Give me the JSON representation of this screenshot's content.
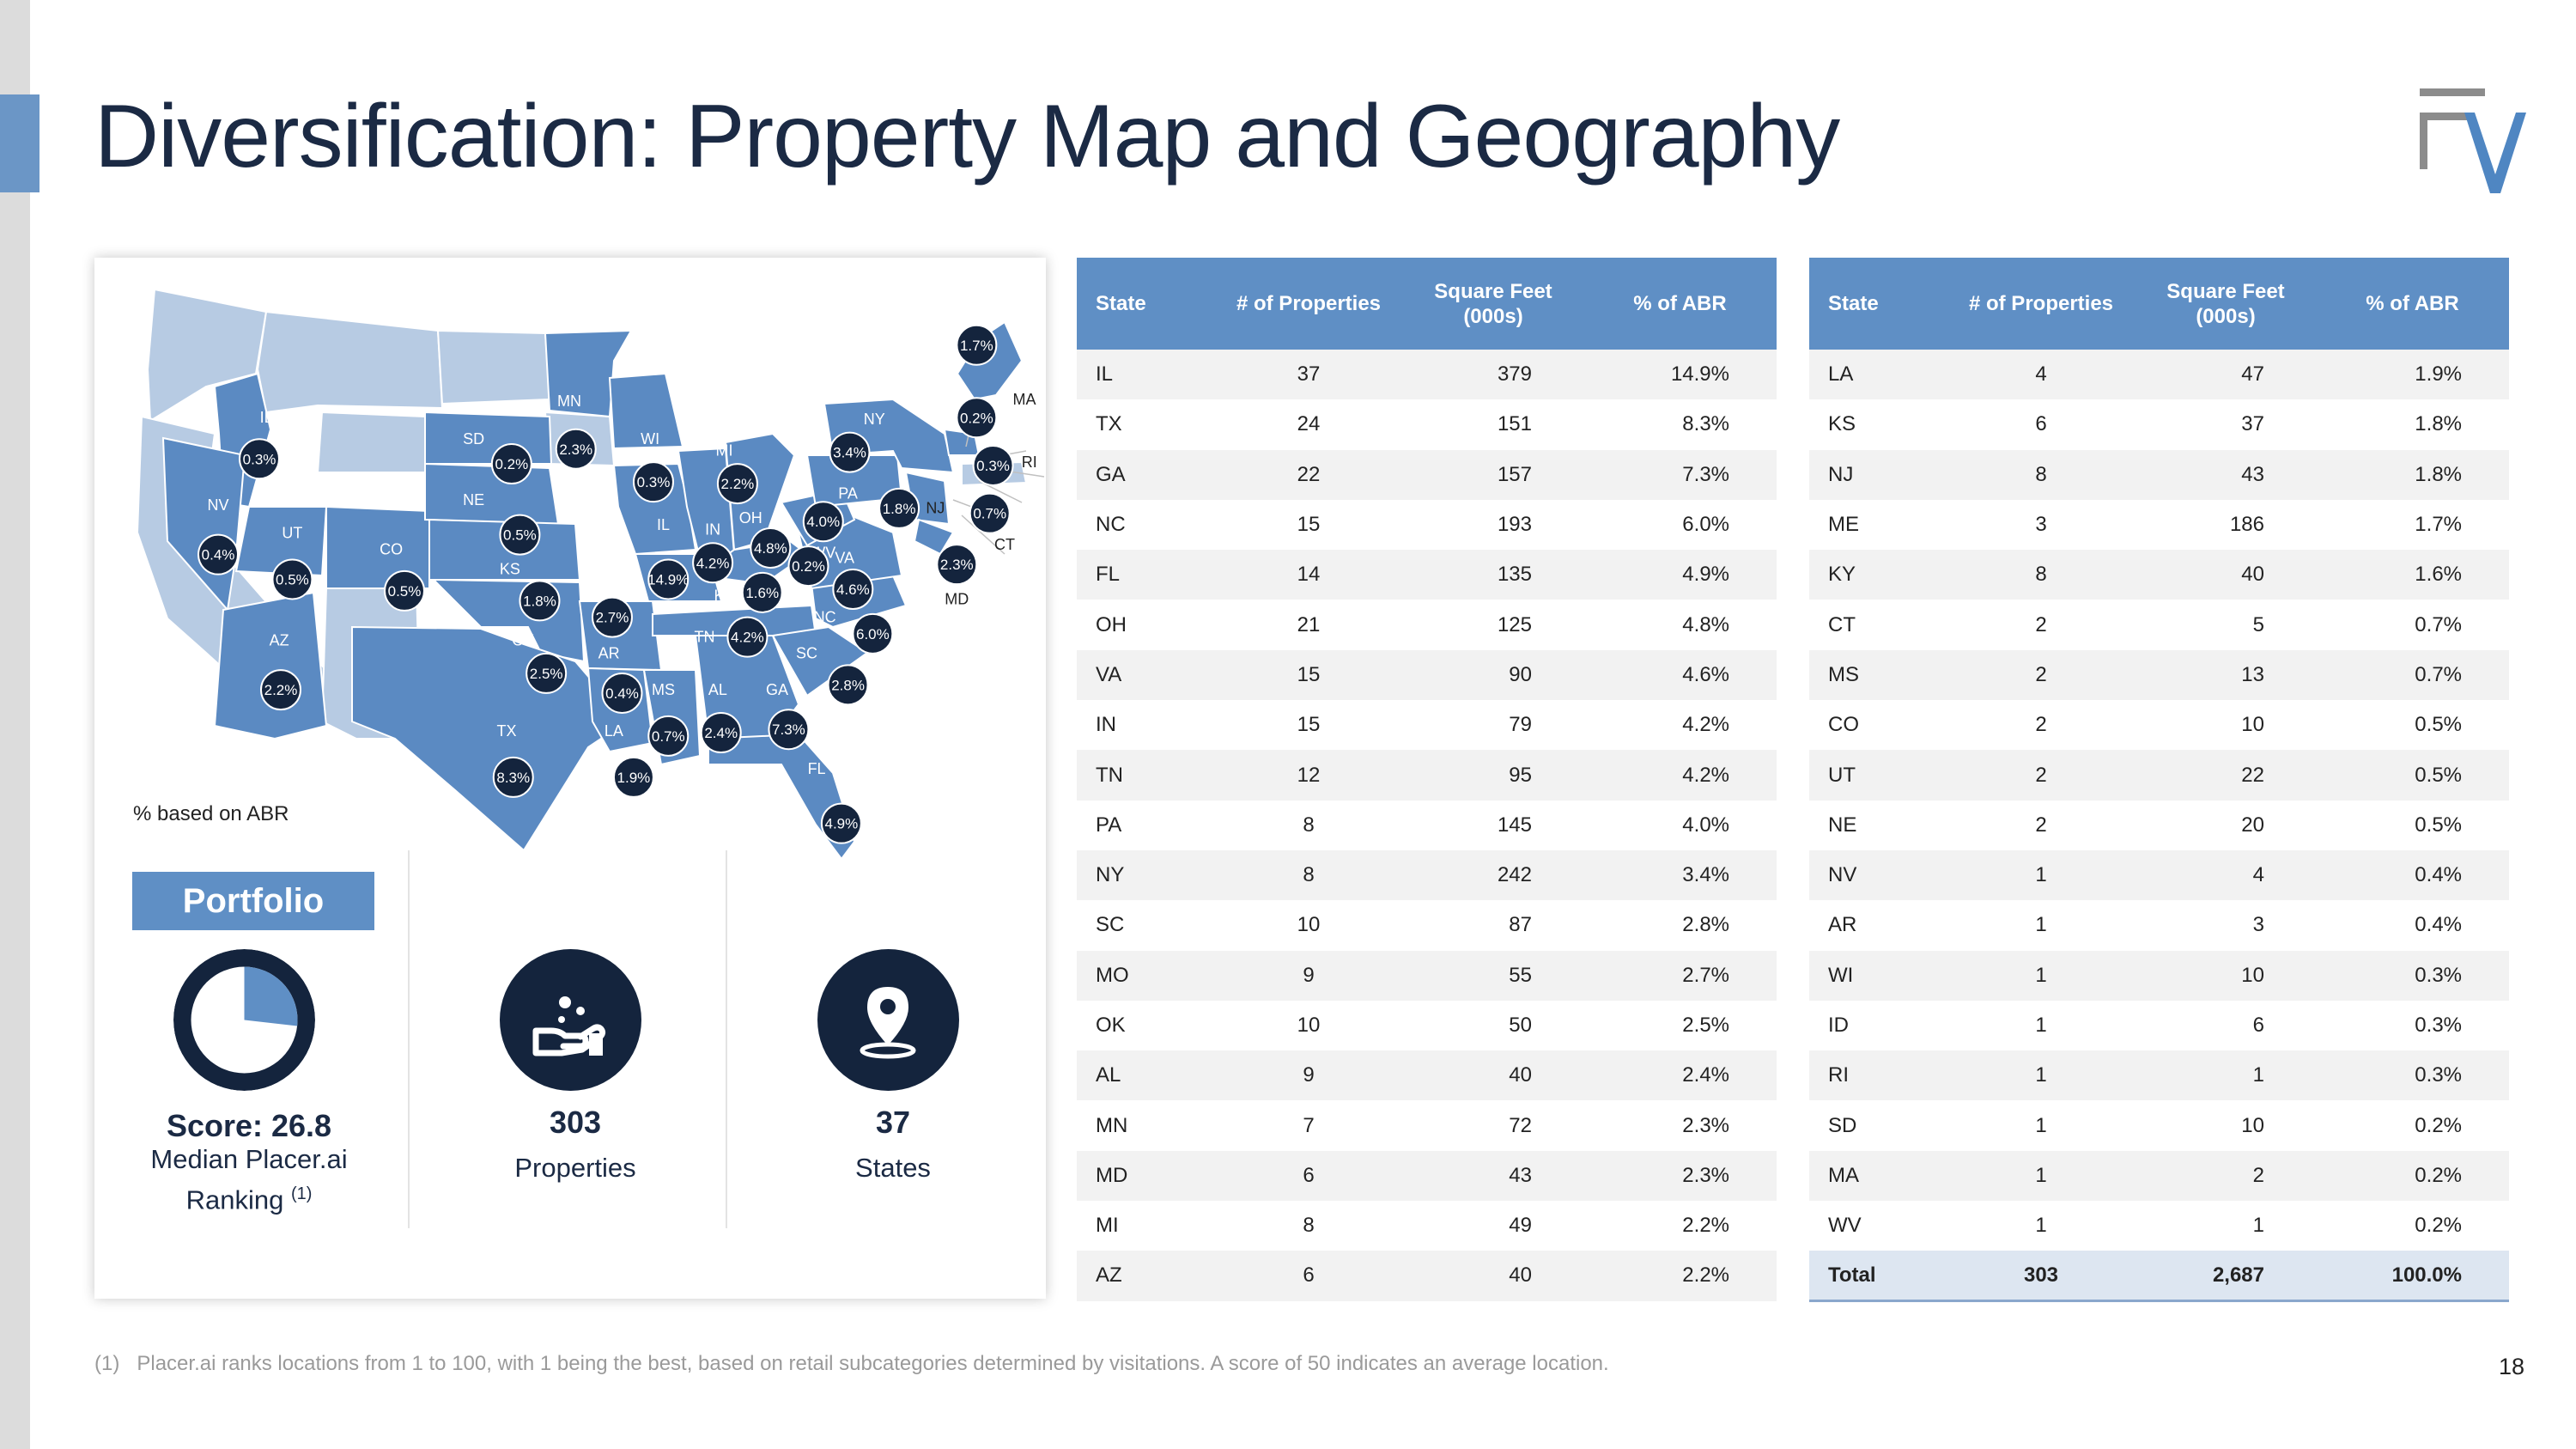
{
  "title": "Diversification: Property Map and Geography",
  "colors": {
    "accent": "#5f8fc5",
    "dark": "#14243d",
    "map_dark": "#5b8ac2",
    "map_light": "#b7cbe3"
  },
  "map": {
    "note": "% based on ABR",
    "labels": [
      {
        "state": "ID",
        "pct": "0.3%"
      },
      {
        "state": "NV",
        "pct": "0.4%"
      },
      {
        "state": "UT",
        "pct": "0.5%"
      },
      {
        "state": "CO",
        "pct": "0.5%"
      },
      {
        "state": "AZ",
        "pct": "2.2%"
      },
      {
        "state": "SD",
        "pct": "0.2%"
      },
      {
        "state": "NE",
        "pct": "0.5%"
      },
      {
        "state": "KS",
        "pct": "1.8%"
      },
      {
        "state": "OK",
        "pct": "2.5%"
      },
      {
        "state": "TX",
        "pct": "8.3%"
      },
      {
        "state": "MN",
        "pct": "2.3%"
      },
      {
        "state": "WI",
        "pct": "0.3%"
      },
      {
        "state": "MO",
        "pct": "2.7%"
      },
      {
        "state": "AR",
        "pct": "0.4%"
      },
      {
        "state": "LA",
        "pct": "1.9%"
      },
      {
        "state": "MS",
        "pct": "0.7%"
      },
      {
        "state": "AL",
        "pct": "2.4%"
      },
      {
        "state": "IL",
        "pct": "14.9%"
      },
      {
        "state": "IN",
        "pct": "4.2%"
      },
      {
        "state": "MI",
        "pct": "2.2%"
      },
      {
        "state": "OH",
        "pct": "4.8%"
      },
      {
        "state": "KY",
        "pct": "1.6%"
      },
      {
        "state": "TN",
        "pct": "4.2%"
      },
      {
        "state": "GA",
        "pct": "7.3%"
      },
      {
        "state": "FL",
        "pct": "4.9%"
      },
      {
        "state": "SC",
        "pct": "2.8%"
      },
      {
        "state": "NC",
        "pct": "6.0%"
      },
      {
        "state": "VA",
        "pct": "4.6%"
      },
      {
        "state": "WV",
        "pct": "0.2%"
      },
      {
        "state": "PA",
        "pct": "4.0%"
      },
      {
        "state": "NY",
        "pct": "3.4%"
      },
      {
        "state": "NJ",
        "pct": "1.8%"
      },
      {
        "state": "MD",
        "pct": "2.3%"
      },
      {
        "state": "CT",
        "pct": "0.7%"
      },
      {
        "state": "RI",
        "pct": "0.3%"
      },
      {
        "state": "MA",
        "pct": "0.2%"
      },
      {
        "state": "ME",
        "pct": "1.7%"
      }
    ]
  },
  "portfolio": {
    "title": "Portfolio",
    "score_line": "Score: 26.8",
    "score_desc1": "Median Placer.ai",
    "score_desc2": "Ranking",
    "score_sup": "(1)",
    "score_fraction": 0.268,
    "properties_count": "303",
    "properties_label": "Properties",
    "states_count": "37",
    "states_label": "States"
  },
  "table_headers": {
    "state": "State",
    "props": "# of Properties",
    "sqft1": "Square Feet",
    "sqft2": "(000s)",
    "abr": "% of ABR"
  },
  "table_left": [
    [
      "IL",
      "37",
      "379",
      "14.9%"
    ],
    [
      "TX",
      "24",
      "151",
      "8.3%"
    ],
    [
      "GA",
      "22",
      "157",
      "7.3%"
    ],
    [
      "NC",
      "15",
      "193",
      "6.0%"
    ],
    [
      "FL",
      "14",
      "135",
      "4.9%"
    ],
    [
      "OH",
      "21",
      "125",
      "4.8%"
    ],
    [
      "VA",
      "15",
      "90",
      "4.6%"
    ],
    [
      "IN",
      "15",
      "79",
      "4.2%"
    ],
    [
      "TN",
      "12",
      "95",
      "4.2%"
    ],
    [
      "PA",
      "8",
      "145",
      "4.0%"
    ],
    [
      "NY",
      "8",
      "242",
      "3.4%"
    ],
    [
      "SC",
      "10",
      "87",
      "2.8%"
    ],
    [
      "MO",
      "9",
      "55",
      "2.7%"
    ],
    [
      "OK",
      "10",
      "50",
      "2.5%"
    ],
    [
      "AL",
      "9",
      "40",
      "2.4%"
    ],
    [
      "MN",
      "7",
      "72",
      "2.3%"
    ],
    [
      "MD",
      "6",
      "43",
      "2.3%"
    ],
    [
      "MI",
      "8",
      "49",
      "2.2%"
    ],
    [
      "AZ",
      "6",
      "40",
      "2.2%"
    ]
  ],
  "table_right": [
    [
      "LA",
      "4",
      "47",
      "1.9%"
    ],
    [
      "KS",
      "6",
      "37",
      "1.8%"
    ],
    [
      "NJ",
      "8",
      "43",
      "1.8%"
    ],
    [
      "ME",
      "3",
      "186",
      "1.7%"
    ],
    [
      "KY",
      "8",
      "40",
      "1.6%"
    ],
    [
      "CT",
      "2",
      "5",
      "0.7%"
    ],
    [
      "MS",
      "2",
      "13",
      "0.7%"
    ],
    [
      "CO",
      "2",
      "10",
      "0.5%"
    ],
    [
      "UT",
      "2",
      "22",
      "0.5%"
    ],
    [
      "NE",
      "2",
      "20",
      "0.5%"
    ],
    [
      "NV",
      "1",
      "4",
      "0.4%"
    ],
    [
      "AR",
      "1",
      "3",
      "0.4%"
    ],
    [
      "WI",
      "1",
      "10",
      "0.3%"
    ],
    [
      "ID",
      "1",
      "6",
      "0.3%"
    ],
    [
      "RI",
      "1",
      "1",
      "0.3%"
    ],
    [
      "SD",
      "1",
      "10",
      "0.2%"
    ],
    [
      "MA",
      "1",
      "2",
      "0.2%"
    ],
    [
      "WV",
      "1",
      "1",
      "0.2%"
    ]
  ],
  "table_total": [
    "Total",
    "303",
    "2,687",
    "100.0%"
  ],
  "footnote_num": "(1)",
  "footnote": "Placer.ai ranks locations from 1 to 100, with 1 being the best, based on retail subcategories determined by visitations. A score of 50 indicates an average location.",
  "page_number": "18"
}
